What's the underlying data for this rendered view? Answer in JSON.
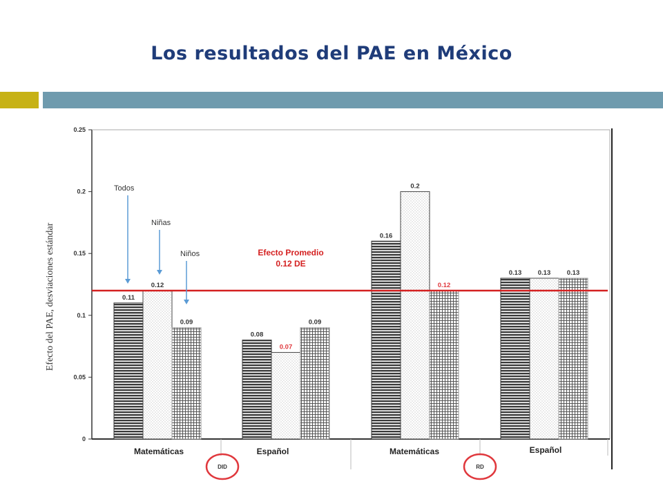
{
  "slide": {
    "title": "Los resultados del PAE en México"
  },
  "chart_data": {
    "type": "bar",
    "ylabel": "Efecto del PAE, desviaciones estándar",
    "ylim": [
      0,
      0.25
    ],
    "y_ticks": [
      "0",
      "0.05",
      "0.1",
      "0.15",
      "0.2",
      "0.25"
    ],
    "y_tick_values": [
      0,
      0.05,
      0.1,
      0.15,
      0.2,
      0.25
    ],
    "groups": [
      {
        "label": "Matemáticas",
        "method": "DID",
        "values": [
          0.11,
          0.12,
          0.09
        ],
        "value_labels": [
          "0.11",
          "0.12",
          "0.09"
        ]
      },
      {
        "label": "Español",
        "method": "DID",
        "values": [
          0.08,
          0.07,
          0.09
        ],
        "value_labels": [
          "0.08",
          "0.07",
          "0.09"
        ]
      },
      {
        "label": "Matemáticas",
        "method": "RD",
        "values": [
          0.16,
          0.2,
          0.12
        ],
        "value_labels": [
          "0.16",
          "0.2",
          "0.12"
        ]
      },
      {
        "label": "Español",
        "method": "RD",
        "values": [
          0.13,
          0.13,
          0.13
        ],
        "value_labels": [
          "0.13",
          "0.13",
          "0.13"
        ]
      }
    ],
    "series": [
      {
        "name": "Todos",
        "pattern": "horizontal-lines"
      },
      {
        "name": "Niñas",
        "pattern": "dots"
      },
      {
        "name": "Niños",
        "pattern": "grid"
      }
    ],
    "method_labels": [
      "DID",
      "RD"
    ],
    "reference_line": {
      "value": 0.12,
      "label_line1": "Efecto Promedio",
      "label_line2": "0.12 DE",
      "color": "#d42020"
    },
    "highlight_color": "#e0383d",
    "grid": false,
    "legend": "inline-arrows-top-left"
  }
}
